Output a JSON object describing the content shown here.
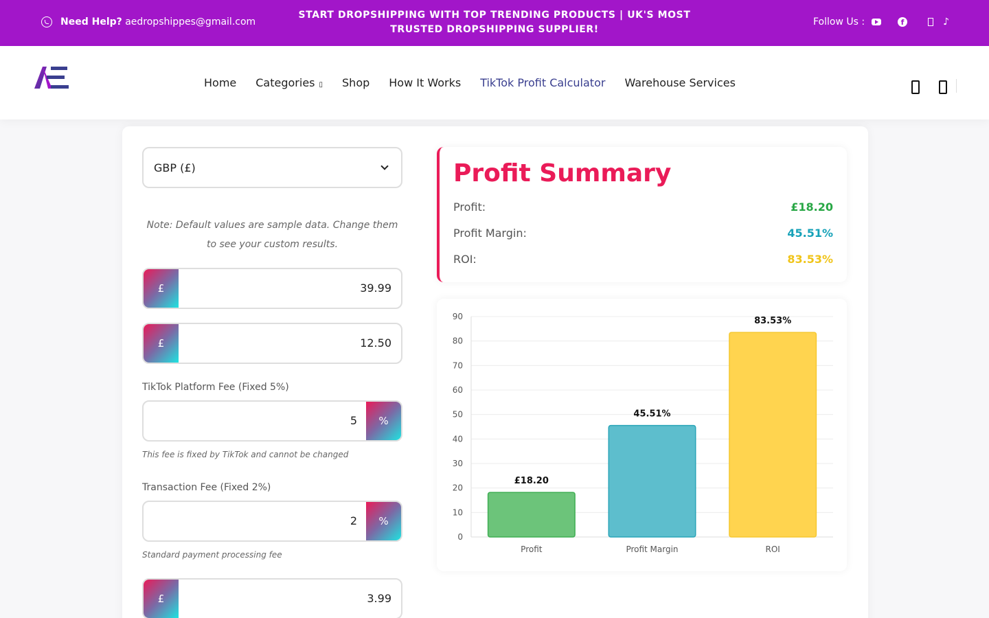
{
  "topbar": {
    "help_label": "Need Help?",
    "email": "aedropshippes@gmail.com",
    "promo": "START DROPSHIPPING WITH TOP TRENDING PRODUCTS | UK'S MOST TRUSTED DROPSHIPPING SUPPLIER!",
    "follow_label": "Follow Us :",
    "fb_glyph": "f",
    "tt_glyph": "♪",
    "icons": [
      "whatsapp-icon",
      "youtube-icon",
      "facebook-icon",
      "box-icon",
      "tiktok-icon"
    ]
  },
  "nav": {
    "items": [
      "Home",
      "Categories",
      "Shop",
      "How It Works",
      "TikTok Profit Calculator",
      "Warehouse Services"
    ],
    "caret": "▯",
    "active_index": 4
  },
  "calculator": {
    "currency": "GBP (£)",
    "note": "Note: Default values are sample data. Change them to see your custom results.",
    "fields": [
      {
        "prefix": "£",
        "value": "39.99"
      },
      {
        "prefix": "£",
        "value": "12.50"
      },
      {
        "label": "TikTok Platform Fee (Fixed 5%)",
        "suffix": "%",
        "value": "5",
        "hint": "This fee is fixed by TikTok and cannot be changed"
      },
      {
        "label": "Transaction Fee (Fixed 2%)",
        "suffix": "%",
        "value": "2",
        "hint": "Standard payment processing fee"
      },
      {
        "prefix": "£",
        "value": "3.99"
      }
    ]
  },
  "summary": {
    "title": "Profit Summary",
    "rows": [
      {
        "label": "Profit:",
        "value": "£18.20",
        "color": "#28a745"
      },
      {
        "label": "Profit Margin:",
        "value": "45.51%",
        "color": "#17a2b8"
      },
      {
        "label": "ROI:",
        "value": "83.53%",
        "color": "#f0c419"
      }
    ]
  },
  "chart_data": {
    "type": "bar",
    "categories": [
      "Profit",
      "Profit Margin",
      "ROI"
    ],
    "values": [
      18.2,
      45.51,
      83.53
    ],
    "data_labels": [
      "£18.20",
      "45.51%",
      "83.53%"
    ],
    "colors": [
      "#6cc47a",
      "#5dbecd",
      "#ffd44f"
    ],
    "border_colors": [
      "#3fae53",
      "#2aa5b8",
      "#f5c832"
    ],
    "ylim": [
      0,
      90
    ],
    "yticks": [
      0,
      10,
      20,
      30,
      40,
      50,
      60,
      70,
      80,
      90
    ],
    "grid": true
  }
}
